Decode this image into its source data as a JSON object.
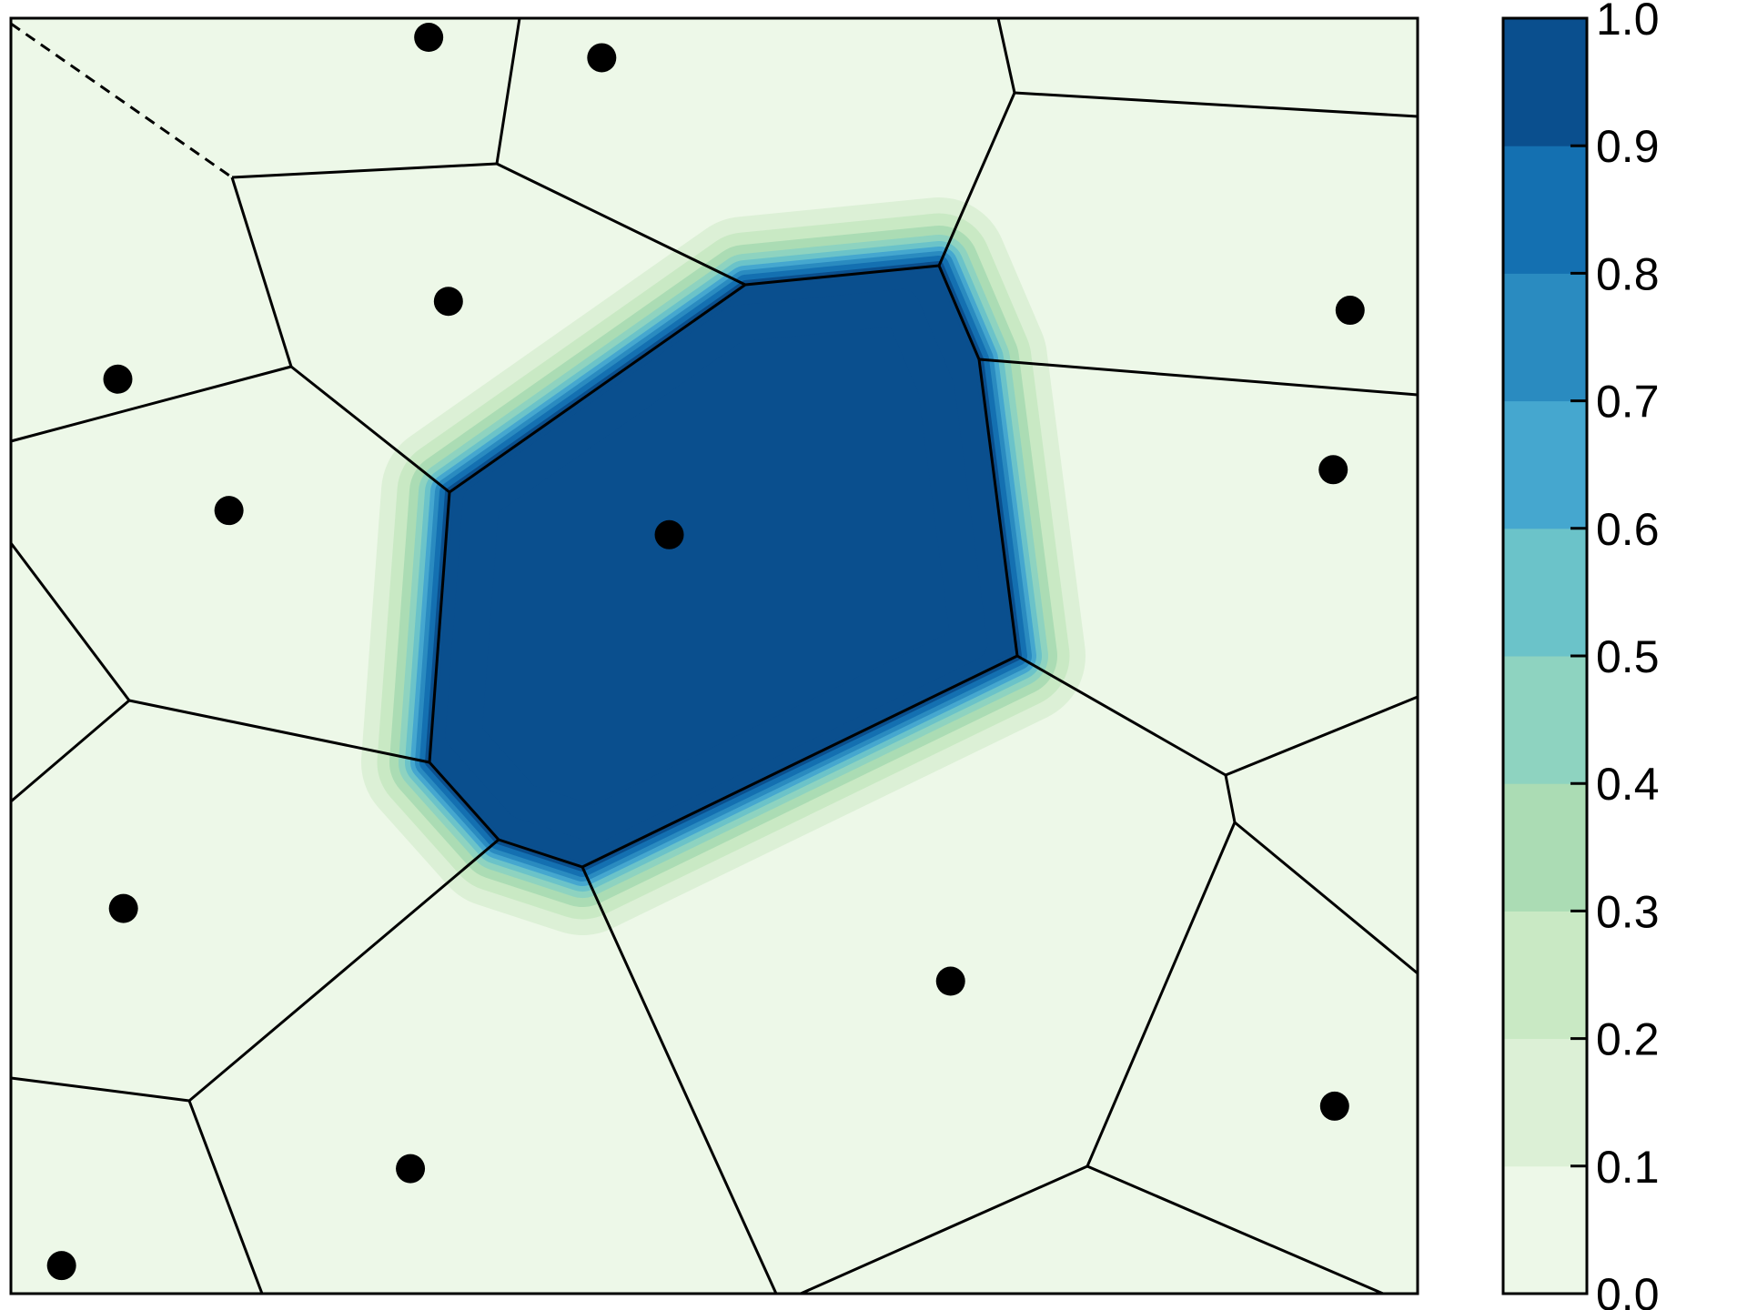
{
  "chart_data": {
    "type": "heatmap",
    "subtype": "voronoi-contourf",
    "title": "",
    "xlabel": "",
    "ylabel": "",
    "xlim": [
      0,
      1
    ],
    "ylim": [
      0,
      1
    ],
    "grid": false,
    "colormap": "GnBu",
    "colorbar": {
      "ticks": [
        "0.0",
        "0.1",
        "0.2",
        "0.3",
        "0.4",
        "0.5",
        "0.6",
        "0.7",
        "0.8",
        "0.9",
        "1.0"
      ],
      "levels": [
        0.0,
        0.1,
        0.2,
        0.3,
        0.4,
        0.5,
        0.6,
        0.7,
        0.8,
        0.9,
        1.0
      ],
      "colors": [
        "#edf8e8",
        "#dcf0d6",
        "#c9e9c4",
        "#abdcb4",
        "#8ed3c0",
        "#6bc3c9",
        "#45a7cf",
        "#2a8bc0",
        "#1470b1",
        "#0a4f8e"
      ]
    },
    "highlighted_cell_value": 1.0,
    "sites": [
      {
        "x": 0.297,
        "y": 0.985
      },
      {
        "x": 0.42,
        "y": 0.969
      },
      {
        "x": 0.311,
        "y": 0.778
      },
      {
        "x": 0.076,
        "y": 0.717
      },
      {
        "x": 0.155,
        "y": 0.614
      },
      {
        "x": 0.468,
        "y": 0.595
      },
      {
        "x": 0.952,
        "y": 0.771
      },
      {
        "x": 0.94,
        "y": 0.646
      },
      {
        "x": 0.08,
        "y": 0.302
      },
      {
        "x": 0.668,
        "y": 0.245
      },
      {
        "x": 0.284,
        "y": 0.098
      },
      {
        "x": 0.036,
        "y": 0.022
      },
      {
        "x": 0.941,
        "y": 0.147
      }
    ]
  }
}
